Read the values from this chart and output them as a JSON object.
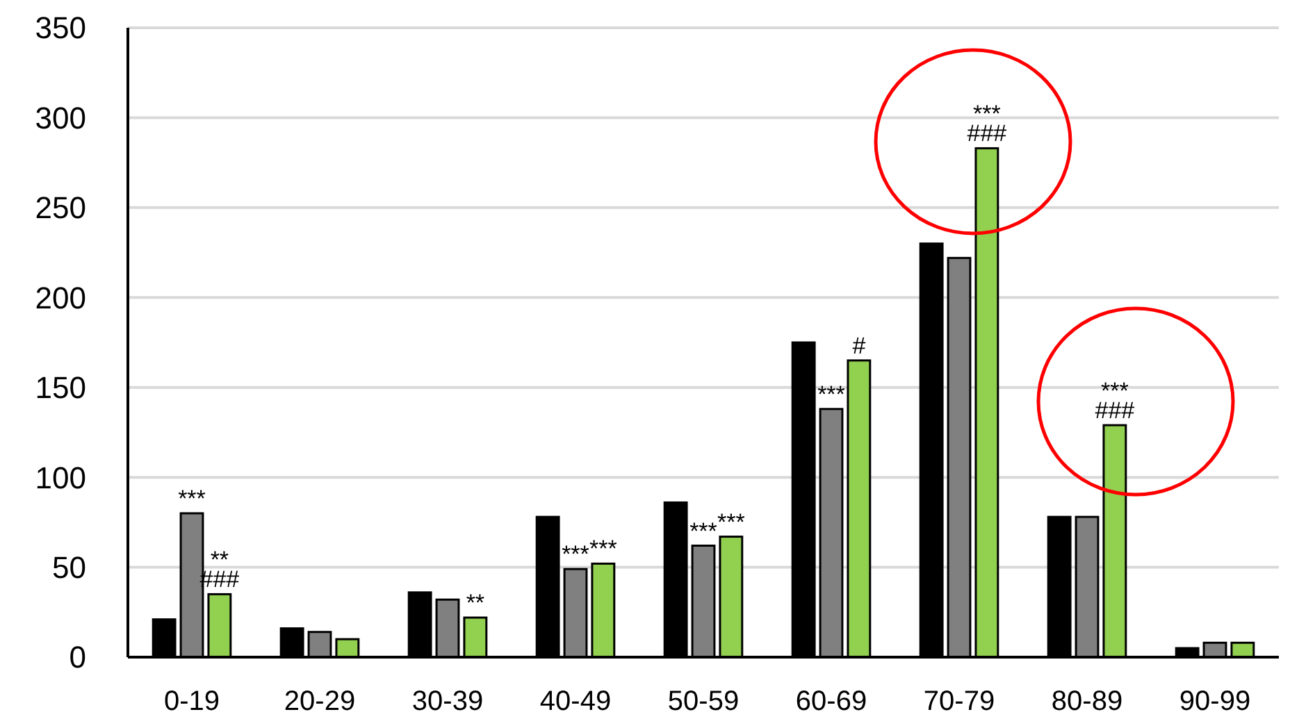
{
  "chart_data": {
    "type": "bar",
    "categories": [
      "0-19",
      "20-29",
      "30-39",
      "40-49",
      "50-59",
      "60-69",
      "70-79",
      "80-89",
      "90-99"
    ],
    "series": [
      {
        "color": "#000000",
        "values": [
          21,
          16,
          36,
          78,
          86,
          175,
          230,
          78,
          5
        ]
      },
      {
        "color": "#808080",
        "values": [
          80,
          14,
          32,
          49,
          62,
          138,
          222,
          78,
          8
        ],
        "value_labels": [
          "***",
          null,
          null,
          "***",
          "***",
          "***",
          null,
          null,
          null
        ]
      },
      {
        "color": "#92d050",
        "values": [
          35,
          10,
          22,
          52,
          67,
          165,
          283,
          129,
          8
        ],
        "value_labels": [
          "**\n###",
          null,
          "**",
          "***",
          "***",
          "#",
          "***\n###",
          "***\n###",
          null
        ]
      }
    ],
    "ylim": [
      0,
      350
    ],
    "yticks": [
      0,
      50,
      100,
      150,
      200,
      250,
      300,
      350
    ],
    "grid": "y"
  }
}
